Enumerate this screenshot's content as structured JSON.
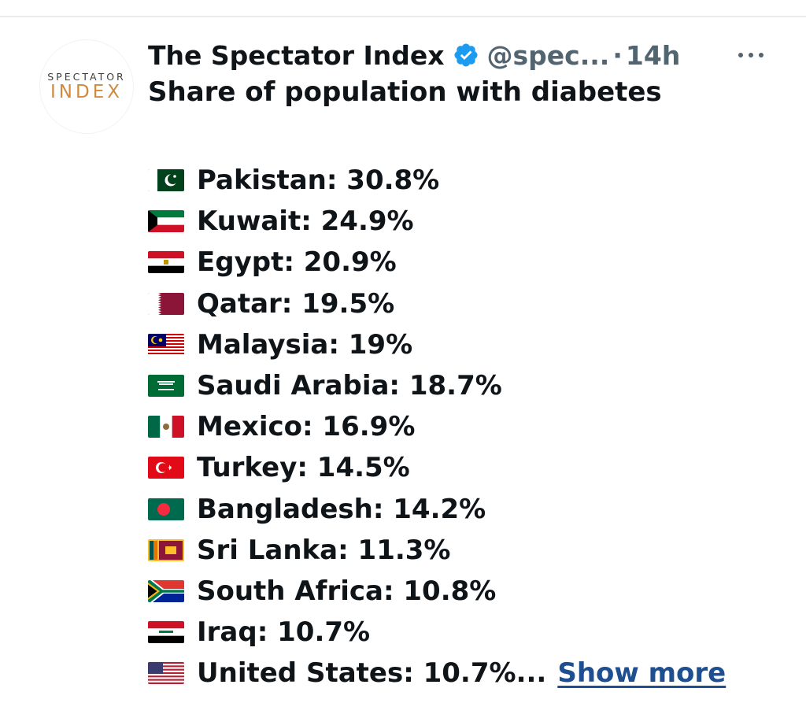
{
  "post": {
    "avatar": {
      "logo_top": "SPECTATOR",
      "logo_bottom": "INDEX"
    },
    "author_name": "The Spectator Index",
    "verified_icon": "verified-badge-icon",
    "handle": "@spec...",
    "separator": "·",
    "timestamp": "14h",
    "more_icon": "more-horizontal-icon",
    "title": "Share of population with diabetes",
    "items": [
      {
        "flag": "pakistan-flag",
        "text": "Pakistan: 30.8%"
      },
      {
        "flag": "kuwait-flag",
        "text": "Kuwait: 24.9%"
      },
      {
        "flag": "egypt-flag",
        "text": "Egypt: 20.9%"
      },
      {
        "flag": "qatar-flag",
        "text": "Qatar: 19.5%"
      },
      {
        "flag": "malaysia-flag",
        "text": "Malaysia: 19%"
      },
      {
        "flag": "saudi-arabia-flag",
        "text": "Saudi Arabia: 18.7%"
      },
      {
        "flag": "mexico-flag",
        "text": "Mexico: 16.9%"
      },
      {
        "flag": "turkey-flag",
        "text": "Turkey: 14.5%"
      },
      {
        "flag": "bangladesh-flag",
        "text": "Bangladesh: 14.2%"
      },
      {
        "flag": "sri-lanka-flag",
        "text": "Sri Lanka: 11.3%"
      },
      {
        "flag": "south-africa-flag",
        "text": "South Africa: 10.8%"
      },
      {
        "flag": "iraq-flag",
        "text": "Iraq: 10.7%"
      },
      {
        "flag": "united-states-flag",
        "text": "United States: 10.7%..."
      }
    ],
    "show_more_label": "Show more"
  },
  "colors": {
    "text": "#0f1419",
    "secondary_text": "#536471",
    "verified_blue": "#1d9bf0",
    "link": "#1d4f91",
    "logo_orange": "#d08a3e"
  }
}
